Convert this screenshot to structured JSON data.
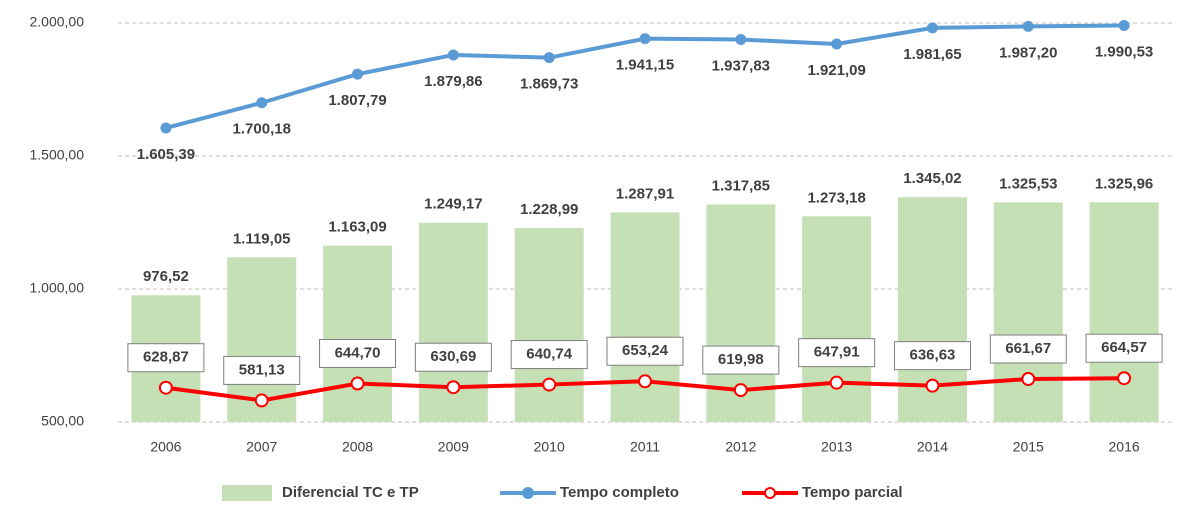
{
  "chart_data": {
    "type": "bar",
    "categories": [
      "2006",
      "2007",
      "2008",
      "2009",
      "2010",
      "2011",
      "2012",
      "2013",
      "2014",
      "2015",
      "2016"
    ],
    "series": [
      {
        "name": "Diferencial TC e TP",
        "type": "bar",
        "color": "#c5e0b4",
        "values": [
          976.52,
          1119.05,
          1163.09,
          1249.17,
          1228.99,
          1287.91,
          1317.85,
          1273.18,
          1345.02,
          1325.53,
          1325.96
        ],
        "value_labels": [
          "976,52",
          "1.119,05",
          "1.163,09",
          "1.249,17",
          "1.228,99",
          "1.287,91",
          "1.317,85",
          "1.273,18",
          "1.345,02",
          "1.325,53",
          "1.325,96"
        ]
      },
      {
        "name": "Tempo completo",
        "type": "line",
        "color": "#5b9bd5",
        "values": [
          1605.39,
          1700.18,
          1807.79,
          1879.86,
          1869.73,
          1941.15,
          1937.83,
          1921.09,
          1981.65,
          1987.2,
          1990.53
        ],
        "value_labels": [
          "1.605,39",
          "1.700,18",
          "1.807,79",
          "1.879,86",
          "1.869,73",
          "1.941,15",
          "1.937,83",
          "1.921,09",
          "1.981,65",
          "1.987,20",
          "1.990,53"
        ]
      },
      {
        "name": "Tempo parcial",
        "type": "line",
        "color": "#ff0000",
        "values": [
          628.87,
          581.13,
          644.7,
          630.69,
          640.74,
          653.24,
          619.98,
          647.91,
          636.63,
          661.67,
          664.57
        ],
        "value_labels": [
          "628,87",
          "581,13",
          "644,70",
          "630,69",
          "640,74",
          "653,24",
          "619,98",
          "647,91",
          "636,63",
          "661,67",
          "664,57"
        ]
      }
    ],
    "ylim": [
      500,
      2000
    ],
    "yticks": [
      {
        "value": 500,
        "label": "500,00"
      },
      {
        "value": 1000,
        "label": "1.000,00"
      },
      {
        "value": 1500,
        "label": "1.500,00"
      },
      {
        "value": 2000,
        "label": "2.000,00"
      }
    ],
    "grid": true,
    "legend": "bottom"
  }
}
